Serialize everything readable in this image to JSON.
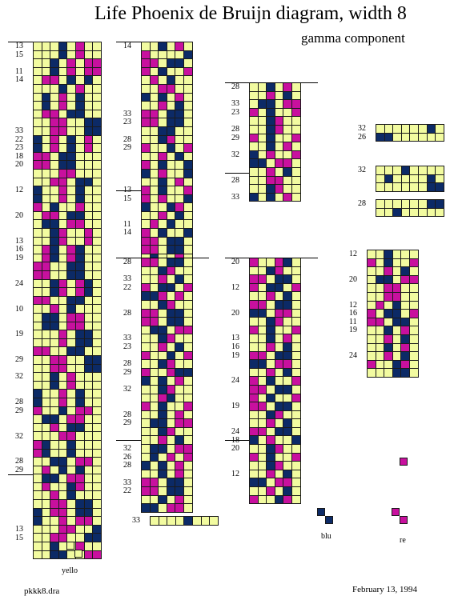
{
  "title": "Life Phoenix de Bruijn diagram, width 8",
  "subtitle": "gamma component",
  "colors": {
    "yellow": "#f2fba0",
    "blue": "#0c2a66",
    "red": "#c8109e",
    "grid": "#1a1a1a"
  },
  "legend": {
    "yellow": "yello",
    "blue": "blu",
    "red": "re"
  },
  "footer": {
    "left": "pkkk8.dra",
    "right": "February 13, 1994"
  },
  "panels": [
    {
      "id": "col1",
      "cols": 8,
      "rows": [
        "...B.R..",
        "...B.R..",
        "..B.R.RR",
        "..B.R.RR",
        ".RR.B.B.",
        "...B.R..",
        ".B.R.B..",
        ".B.R.B..",
        ".RR.BB..",
        "..RR..BB",
        "..RR..BB",
        "B.R.B.R.",
        "B.R.B.R.",
        "RR.BB...",
        "RR.BB...",
        "...RR...",
        "..RR.BB.",
        "B..R.B..",
        "B..R.B..",
        "R.B..R..",
        ".RR.BB..",
        ".BB.RR..",
        "..BR..R.",
        "..BR..R.",
        ".RB.RB..",
        ".RB.RB..",
        "RR..BB..",
        "RR..BB..",
        "..BR.RB.",
        "..BR.RB.",
        "RR..BB..",
        "..R.B...",
        ".BB.RR..",
        ".BB.RR..",
        "...R.BB.",
        "...R.BB.",
        "RR..BB..",
        "..RR..BB",
        "..RR..BB",
        "..B.R...",
        "..B.R...",
        "B..R.B..",
        "B..R.B..",
        "R..B.RR.",
        ".BB.RR..",
        "..R.BB..",
        "...RR...",
        "RB..B...",
        "RB..B...",
        "..BB.RR.",
        ".R.B.B..",
        ".BB.RR..",
        ".R..BR..",
        "..R.B...",
        "..RR.BB.",
        "B.RR.BB.",
        "B..R.RR.",
        "...RR..B",
        "..RR..BB",
        "..B..R..",
        "..BB..RR"
      ]
    },
    {
      "id": "col2",
      "cols": 6,
      "rows": [
        "..B.R.",
        "R....B",
        "RR.BB.",
        "R.B..R",
        ".R.B..",
        "..RR..",
        "B.B.R.",
        "..R.B.",
        "RR.BB.",
        "RR.BB.",
        "..BB..",
        "..BR..",
        "R..B.R",
        "..R.B.",
        "R.B..B",
        "B.R..B",
        "..B.R.",
        "R.B..R",
        "R.R..B",
        "B..BR.",
        "..R.B.",
        ".R.B..",
        "R.B..B",
        "RR.BB.",
        "RR.BB.",
        ".B..R."
      ]
    },
    {
      "id": "col3",
      "cols": 6,
      "rows": [
        "RR.BB.",
        "..BR..",
        "..R.B.",
        "R.BB.R",
        "BBR.R.",
        "..BR..",
        "RR.BB.",
        "RR.BB.",
        ".BB.RR",
        "..BR..",
        "..R.B.",
        "R..B.R",
        "..BR..",
        "R..RBB",
        "B.B.R.",
        "..BR..",
        "..RB..",
        "R.B..R",
        "..B.R.",
        ".BB.RR",
        "..BR..",
        "..R.B.",
        ".BB.RR",
        ".B.R.R",
        "B.B.R.",
        "..B.R.",
        "RR.BB.",
        "RR.BB.",
        "..B.R.",
        "BB.RR."
      ]
    },
    {
      "id": "col4",
      "cols": 6,
      "rows": [
        "..B.R.",
        "..R.B.",
        ".BB.RR",
        "R.B..R",
        "..BR..",
        "..BR..",
        "R.B..R",
        "..B.R.",
        "B.R..R",
        "BB.RR.",
        "..R.B.",
        "..RR..",
        "..BR..",
        "B.B.R."
      ]
    },
    {
      "id": "col5",
      "cols": 6,
      "rows": [
        "R..RB.",
        "..BR..",
        "RR.BB.",
        "R.BB.R",
        "..R.B.",
        "RR.BB.",
        "BB.RR.",
        "..BR..",
        "R.B..R",
        "..B.R.",
        "..R.B.",
        "RR.BB.",
        "BB.RR.",
        "..R.B.",
        "R.B..R",
        "RR.BB.",
        "R.B..R",
        "RR.BB.",
        "..BR..",
        "..R.B.",
        "RR.BB.",
        "B.R..B",
        "..BR..",
        "R.B..R",
        "..BR..",
        "..R.B.",
        "BB.RR.",
        "..R.B.",
        "R..BR."
      ]
    },
    {
      "id": "col6",
      "cols": 6,
      "rows": [
        "..B...",
        "R.B..R",
        "..R.B.",
        ".BB.RR",
        "..RR..",
        "..RR..",
        ".R.B..",
        "R.BB.R",
        "RR.BB.",
        "..B.R.",
        "..R.B.",
        "..B.R.",
        "..R.B.",
        "R..BR.",
        "...BB."
      ]
    },
    {
      "id": "right1",
      "cols": 8,
      "rows": [
        "......B.",
        "BB......"
      ]
    },
    {
      "id": "right2",
      "cols": 8,
      "rows": [
        "...B....",
        ".B....B.",
        "......BB"
      ]
    },
    {
      "id": "right3",
      "cols": 8,
      "rows": [
        "......BB",
        "..B....."
      ]
    },
    {
      "id": "bottom",
      "cols": 8,
      "rows": [
        "....B..."
      ]
    }
  ],
  "labels": [
    {
      "panel": "col1",
      "items": [
        [
          "0",
          "13"
        ],
        [
          "1",
          "15"
        ],
        [
          "3",
          "11"
        ],
        [
          "4",
          "14"
        ],
        [
          "10",
          "33"
        ],
        [
          "11",
          "22"
        ],
        [
          "12",
          "23"
        ],
        [
          "13",
          "18"
        ],
        [
          "14",
          "20"
        ],
        [
          "17",
          "12"
        ],
        [
          "20",
          "20"
        ],
        [
          "23",
          "13"
        ],
        [
          "24",
          "16"
        ],
        [
          "25",
          "19"
        ],
        [
          "28",
          "24"
        ],
        [
          "31",
          "10"
        ],
        [
          "34",
          "19"
        ],
        [
          "37",
          "29"
        ],
        [
          "39",
          "32"
        ],
        [
          "42",
          "28"
        ],
        [
          "43",
          "29"
        ],
        [
          "46",
          "32"
        ],
        [
          "49",
          "28"
        ],
        [
          "50",
          "29"
        ],
        [
          "57",
          "13"
        ],
        [
          "58",
          "15"
        ]
      ]
    },
    {
      "panel": "col2",
      "items": [
        [
          "0",
          "14"
        ],
        [
          "8",
          "33"
        ],
        [
          "9",
          "23"
        ],
        [
          "11",
          "28"
        ],
        [
          "12",
          "29"
        ],
        [
          "17",
          "13"
        ],
        [
          "18",
          "15"
        ],
        [
          "21",
          "11"
        ],
        [
          "22",
          "14"
        ]
      ]
    },
    {
      "panel": "col3",
      "items": [
        [
          "0",
          "28"
        ],
        [
          "2",
          "33"
        ],
        [
          "3",
          "22"
        ],
        [
          "6",
          "28"
        ],
        [
          "9",
          "33"
        ],
        [
          "10",
          "23"
        ],
        [
          "12",
          "28"
        ],
        [
          "13",
          "29"
        ],
        [
          "15",
          "32"
        ],
        [
          "18",
          "28"
        ],
        [
          "19",
          "29"
        ],
        [
          "22",
          "32"
        ],
        [
          "23",
          "26"
        ],
        [
          "24",
          "28"
        ],
        [
          "26",
          "33"
        ],
        [
          "27",
          "22"
        ]
      ]
    },
    {
      "panel": "col4",
      "items": [
        [
          "0",
          "28"
        ],
        [
          "2",
          "33"
        ],
        [
          "3",
          "23"
        ],
        [
          "5",
          "28"
        ],
        [
          "6",
          "29"
        ],
        [
          "8",
          "32"
        ],
        [
          "11",
          "28"
        ],
        [
          "13",
          "33"
        ]
      ]
    },
    {
      "panel": "col5",
      "items": [
        [
          "0",
          "20"
        ],
        [
          "3",
          "12"
        ],
        [
          "6",
          "20"
        ],
        [
          "9",
          "13"
        ],
        [
          "10",
          "16"
        ],
        [
          "11",
          "19"
        ],
        [
          "14",
          "24"
        ],
        [
          "17",
          "19"
        ],
        [
          "20",
          "24"
        ],
        [
          "21",
          "18"
        ],
        [
          "22",
          "20"
        ],
        [
          "25",
          "12"
        ]
      ]
    },
    {
      "panel": "col6",
      "items": [
        [
          "0",
          "12"
        ],
        [
          "3",
          "20"
        ],
        [
          "6",
          "12"
        ],
        [
          "7",
          "16"
        ],
        [
          "8",
          "11"
        ],
        [
          "9",
          "19"
        ],
        [
          "12",
          "24"
        ]
      ]
    },
    {
      "panel": "right1",
      "items": [
        [
          "0",
          "32"
        ],
        [
          "1",
          "26"
        ]
      ]
    },
    {
      "panel": "right2",
      "items": [
        [
          "0",
          "32"
        ]
      ]
    },
    {
      "panel": "right3",
      "items": [
        [
          "0",
          "28"
        ]
      ]
    },
    {
      "panel": "bottom",
      "items": [
        [
          "0",
          "33"
        ]
      ]
    }
  ]
}
